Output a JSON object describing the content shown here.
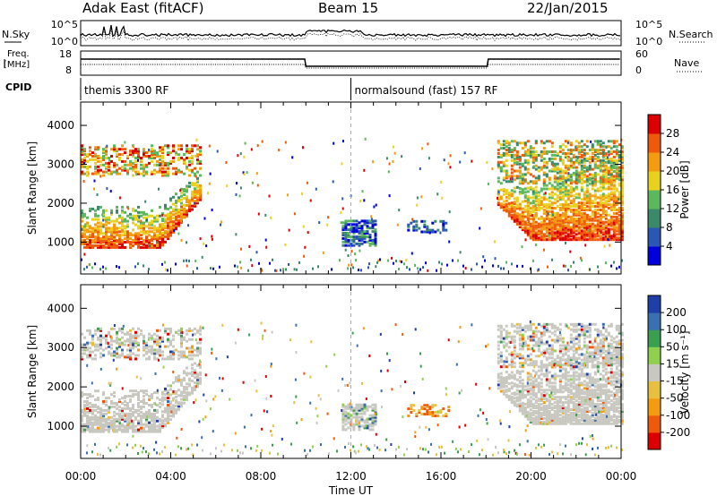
{
  "header": {
    "title": "Adak East (fitACF)",
    "beam": "Beam 15",
    "date": "22/Jan/2015"
  },
  "side_labels": {
    "nsky": "N.Sky",
    "nsearch": "N.Search",
    "freq_line1": "Freq.",
    "freq_line2": "[MHz]",
    "nave": "Nave",
    "cpid": "CPID"
  },
  "noise_panel": {
    "left_ticks": [
      "10^5",
      "10^0"
    ],
    "right_ticks": [
      "10^5",
      "10^0"
    ]
  },
  "freq_panel": {
    "left_ticks": [
      "18",
      "8"
    ],
    "right_ticks": [
      "60",
      "0"
    ]
  },
  "cpid_panel": {
    "segments": [
      {
        "label": "themis 3300 RF",
        "start_hour": 0,
        "end_hour": 12
      },
      {
        "label": "normalsound (fast) 157 RF",
        "start_hour": 12,
        "end_hour": 24
      }
    ]
  },
  "colors": {
    "power_scale": [
      "#0000dd",
      "#2a57b4",
      "#3a8a6a",
      "#5cb85c",
      "#e8d21e",
      "#f39c12",
      "#ee5a0a",
      "#dd0000"
    ],
    "velocity_scale": [
      "#dd0000",
      "#ee5a0a",
      "#f39c12",
      "#e8c040",
      "#c8c8c0",
      "#8fd14f",
      "#3aa050",
      "#3a6fb0",
      "#1f3fa8"
    ],
    "ground_scatter": "#c8c8c0"
  },
  "chart_data": [
    {
      "type": "heatmap",
      "panel": "power",
      "ylabel": "Slant Range [km]",
      "ylim": [
        180,
        4600
      ],
      "yticks": [
        "1000",
        "2000",
        "3000",
        "4000"
      ],
      "xlim_hours": [
        0,
        24
      ],
      "colorbar": {
        "label": "Power [dB]",
        "range": [
          0,
          32
        ],
        "ticks": [
          "4",
          "8",
          "12",
          "16",
          "20",
          "24",
          "28"
        ]
      }
    },
    {
      "type": "heatmap",
      "panel": "velocity",
      "ylabel": "Slant Range [km]",
      "ylim": [
        180,
        4600
      ],
      "yticks": [
        "1000",
        "2000",
        "3000",
        "4000"
      ],
      "xlim_hours": [
        0,
        24
      ],
      "xticks": [
        "00:00",
        "04:00",
        "08:00",
        "12:00",
        "16:00",
        "20:00",
        "00:00"
      ],
      "xlabel": "Time UT",
      "colorbar": {
        "label": "Velocity [m s⁻¹]",
        "ticks": [
          "200",
          "100",
          "50",
          "15",
          "-15",
          "-50",
          "-100",
          "-200"
        ]
      }
    }
  ]
}
